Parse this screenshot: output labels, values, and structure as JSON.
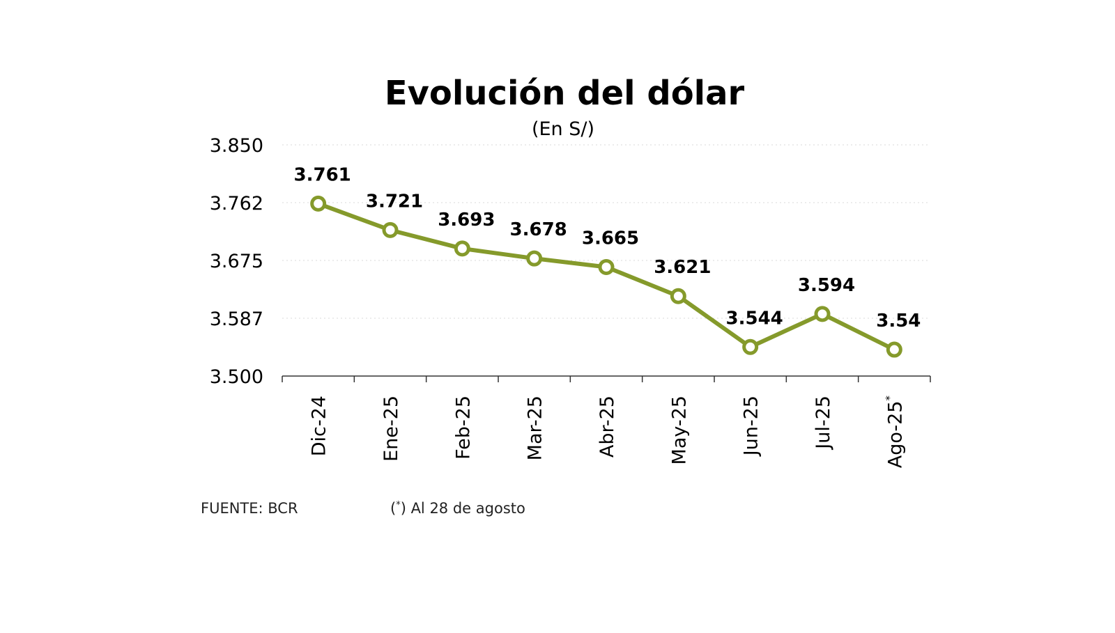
{
  "colors": {
    "series": "#859a2b",
    "text": "#000000"
  },
  "footer": {
    "source": "FUENTE: BCR",
    "note_open": "(",
    "note_star": "*",
    "note_rest": ") Al 28 de agosto"
  },
  "chart_data": {
    "type": "line",
    "title": "Evolución del dólar",
    "subtitle": "(En S/)",
    "xlabel": "",
    "ylabel": "",
    "categories": [
      "Dic-24",
      "Ene-25",
      "Feb-25",
      "Mar-25",
      "Abr-25",
      "May-25",
      "Jun-25",
      "Jul-25",
      "Ago-25"
    ],
    "category_markers": [
      "",
      "",
      "",
      "",
      "",
      "",
      "",
      "",
      "*"
    ],
    "series": [
      {
        "values": [
          3.761,
          3.721,
          3.693,
          3.678,
          3.665,
          3.621,
          3.544,
          3.594,
          3.54
        ],
        "labels": [
          "3.761",
          "3.721",
          "3.693",
          "3.678",
          "3.665",
          "3.621",
          "3.544",
          "3.594",
          "3.54"
        ]
      }
    ],
    "ylim": [
      3.5,
      3.85
    ],
    "y_ticks": [
      3.5,
      3.5875,
      3.675,
      3.7625,
      3.85
    ],
    "y_tick_labels": [
      "3.500",
      "3.587",
      "3.675",
      "3.762",
      "3.850"
    ],
    "grid": true,
    "legend": "none"
  }
}
